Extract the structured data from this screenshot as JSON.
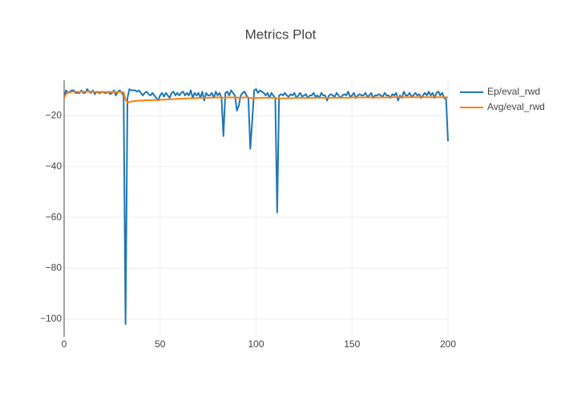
{
  "chart_data": {
    "type": "line",
    "title": "Metrics Plot",
    "x": [
      0,
      1,
      2,
      3,
      4,
      5,
      6,
      7,
      8,
      9,
      10,
      11,
      12,
      13,
      14,
      15,
      16,
      17,
      18,
      19,
      20,
      21,
      22,
      23,
      24,
      25,
      26,
      27,
      28,
      29,
      30,
      31,
      32,
      33,
      34,
      35,
      36,
      37,
      38,
      39,
      40,
      41,
      42,
      43,
      44,
      45,
      46,
      47,
      48,
      49,
      50,
      51,
      52,
      53,
      54,
      55,
      56,
      57,
      58,
      59,
      60,
      61,
      62,
      63,
      64,
      65,
      66,
      67,
      68,
      69,
      70,
      71,
      72,
      73,
      74,
      75,
      76,
      77,
      78,
      79,
      80,
      81,
      82,
      83,
      84,
      85,
      86,
      87,
      88,
      89,
      90,
      91,
      92,
      93,
      94,
      95,
      96,
      97,
      98,
      99,
      100,
      101,
      102,
      103,
      104,
      105,
      106,
      107,
      108,
      109,
      110,
      111,
      112,
      113,
      114,
      115,
      116,
      117,
      118,
      119,
      120,
      121,
      122,
      123,
      124,
      125,
      126,
      127,
      128,
      129,
      130,
      131,
      132,
      133,
      134,
      135,
      136,
      137,
      138,
      139,
      140,
      141,
      142,
      143,
      144,
      145,
      146,
      147,
      148,
      149,
      150,
      151,
      152,
      153,
      154,
      155,
      156,
      157,
      158,
      159,
      160,
      161,
      162,
      163,
      164,
      165,
      166,
      167,
      168,
      169,
      170,
      171,
      172,
      173,
      174,
      175,
      176,
      177,
      178,
      179,
      180,
      181,
      182,
      183,
      184,
      185,
      186,
      187,
      188,
      189,
      190,
      191,
      192,
      193,
      194,
      195,
      196,
      197,
      198,
      199,
      200
    ],
    "series": [
      {
        "name": "Ep/eval_rwd",
        "color": "#1f77b4",
        "values": [
          -13,
          -10,
          -11,
          -10.5,
          -10,
          -10,
          -11,
          -11,
          -11,
          -10,
          -11,
          -11,
          -9.5,
          -10.5,
          -11,
          -10,
          -11.5,
          -10.5,
          -11,
          -11,
          -10.5,
          -11,
          -11,
          -10.5,
          -11.5,
          -11,
          -10,
          -12,
          -10.5,
          -10,
          -11,
          -12,
          -102,
          -13,
          -9.5,
          -10,
          -10,
          -10,
          -10.5,
          -10,
          -11,
          -12,
          -11,
          -10.5,
          -11.5,
          -12,
          -11,
          -12,
          -13,
          -14,
          -12,
          -11,
          -12.5,
          -11,
          -12,
          -13,
          -11,
          -10.5,
          -12,
          -11,
          -12,
          -11,
          -10.5,
          -12,
          -11,
          -12,
          -10,
          -13,
          -11,
          -12,
          -11,
          -13,
          -10.5,
          -14,
          -11,
          -12,
          -12,
          -11,
          -13,
          -10.5,
          -12,
          -11,
          -13,
          -28,
          -11,
          -10.5,
          -12,
          -10,
          -11,
          -12,
          -18,
          -16,
          -12,
          -11,
          -10.5,
          -12,
          -13,
          -33,
          -22,
          -10,
          -9.5,
          -11,
          -10,
          -10.5,
          -11,
          -12,
          -11,
          -13,
          -11,
          -12,
          -13,
          -58,
          -12,
          -11.5,
          -12,
          -11,
          -12,
          -12.5,
          -11.5,
          -12,
          -11,
          -13,
          -12,
          -11,
          -12.5,
          -12,
          -11.5,
          -13,
          -12,
          -12,
          -11,
          -12.5,
          -12,
          -13,
          -11,
          -12,
          -12,
          -14,
          -12,
          -11.5,
          -12,
          -12.5,
          -11,
          -12,
          -13,
          -12,
          -11.5,
          -12,
          -10.5,
          -12.5,
          -12,
          -11,
          -13,
          -12,
          -11.5,
          -12,
          -12,
          -11,
          -12.5,
          -12,
          -11,
          -13,
          -12,
          -12,
          -11.5,
          -12,
          -12.5,
          -11,
          -12,
          -12,
          -13,
          -11.5,
          -12,
          -11,
          -14,
          -12,
          -13,
          -10.5,
          -12,
          -12,
          -11,
          -12.5,
          -12,
          -11,
          -12,
          -11.5,
          -13,
          -12,
          -11,
          -12,
          -10.5,
          -12,
          -11,
          -13,
          -11,
          -10.5,
          -12,
          -11,
          -13,
          -13.5,
          -30
        ]
      },
      {
        "name": "Avg/eval_rwd",
        "color": "#ff7f0e",
        "values": [
          -13,
          -11.5,
          -11,
          -10.8,
          -10.6,
          -10.5,
          -10.5,
          -10.6,
          -10.6,
          -10.5,
          -10.5,
          -10.6,
          -10.5,
          -10.5,
          -10.5,
          -10.5,
          -10.6,
          -10.6,
          -10.6,
          -10.6,
          -10.6,
          -10.6,
          -10.6,
          -10.6,
          -10.6,
          -10.6,
          -10.6,
          -10.7,
          -10.7,
          -10.6,
          -10.7,
          -10.7,
          -13.6,
          -14.8,
          -14.6,
          -14.4,
          -14.3,
          -14.2,
          -14.1,
          -14,
          -14,
          -14,
          -13.9,
          -13.9,
          -13.9,
          -13.9,
          -13.8,
          -13.8,
          -13.8,
          -13.8,
          -13.7,
          -13.7,
          -13.6,
          -13.6,
          -13.5,
          -13.5,
          -13.5,
          -13.4,
          -13.4,
          -13.3,
          -13.3,
          -13.3,
          -13.2,
          -13.2,
          -13.2,
          -13.1,
          -13.1,
          -13.1,
          -13.1,
          -13,
          -13,
          -13,
          -13,
          -12.9,
          -12.9,
          -12.9,
          -12.9,
          -12.8,
          -12.8,
          -12.8,
          -12.8,
          -12.8,
          -12.8,
          -12.9,
          -12.9,
          -12.8,
          -12.8,
          -12.8,
          -12.8,
          -12.8,
          -12.8,
          -12.9,
          -12.9,
          -12.8,
          -12.8,
          -12.8,
          -12.8,
          -13,
          -13.1,
          -13,
          -13,
          -13,
          -12.9,
          -12.9,
          -12.9,
          -12.9,
          -12.9,
          -12.9,
          -12.9,
          -12.9,
          -12.9,
          -13.2,
          -13.2,
          -13.2,
          -13.1,
          -13.1,
          -13.1,
          -13.1,
          -13.1,
          -13.1,
          -13,
          -13,
          -13,
          -13,
          -13,
          -13,
          -13,
          -13,
          -13,
          -13,
          -12.9,
          -12.9,
          -12.9,
          -12.9,
          -12.9,
          -12.9,
          -12.9,
          -12.9,
          -12.9,
          -12.9,
          -12.9,
          -12.9,
          -12.9,
          -12.9,
          -12.9,
          -12.9,
          -12.9,
          -12.9,
          -12.9,
          -12.9,
          -12.8,
          -12.8,
          -12.8,
          -12.8,
          -12.8,
          -12.8,
          -12.8,
          -12.8,
          -12.8,
          -12.8,
          -12.8,
          -12.8,
          -12.8,
          -12.8,
          -12.8,
          -12.8,
          -12.8,
          -12.8,
          -12.8,
          -12.8,
          -12.7,
          -12.7,
          -12.7,
          -12.7,
          -12.7,
          -12.7,
          -12.7,
          -12.7,
          -12.7,
          -12.7,
          -12.7,
          -12.7,
          -12.7,
          -12.7,
          -12.7,
          -12.7,
          -12.7,
          -12.7,
          -12.7,
          -12.7,
          -12.7,
          -12.7,
          -12.7,
          -12.7,
          -12.7,
          -12.7,
          -12.7,
          -12.7,
          -12.7,
          -12.7,
          -12.8
        ]
      }
    ],
    "xlim": [
      0,
      200
    ],
    "ylim": [
      -107,
      -6
    ],
    "xticks": [
      0,
      50,
      100,
      150,
      200
    ],
    "yticks": [
      {
        "value": -20,
        "label": "−20"
      },
      {
        "value": -40,
        "label": "−40"
      },
      {
        "value": -60,
        "label": "−60"
      },
      {
        "value": -80,
        "label": "−80"
      },
      {
        "value": -100,
        "label": "−100"
      }
    ],
    "grid": true
  }
}
